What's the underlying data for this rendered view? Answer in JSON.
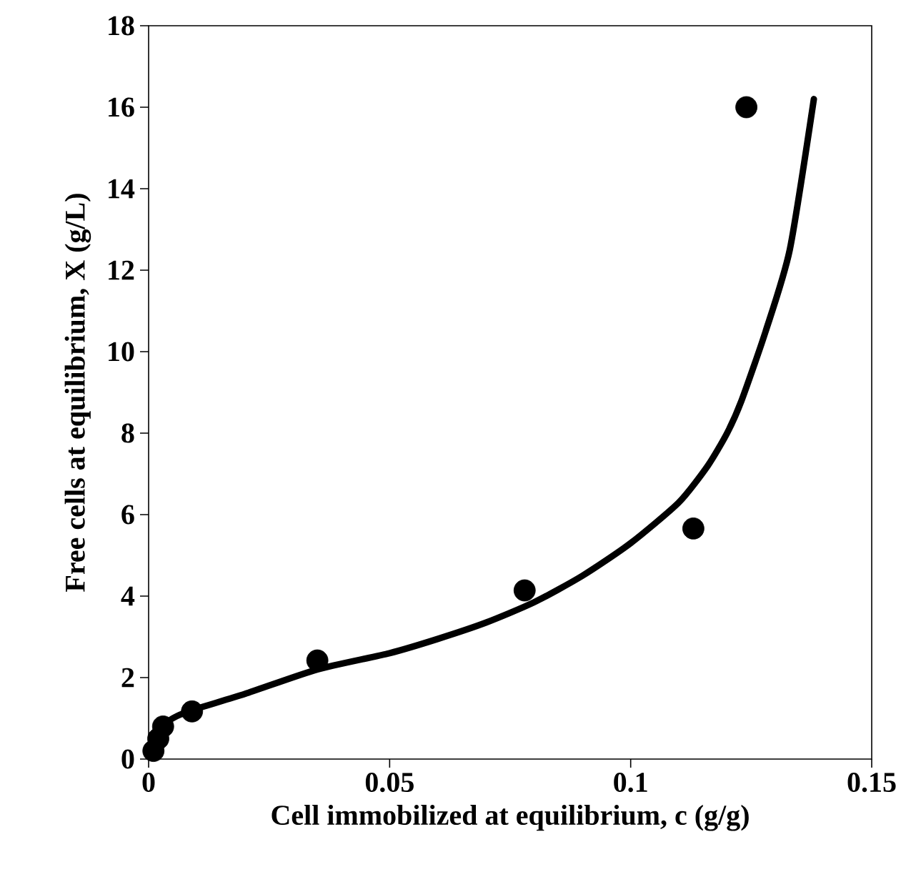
{
  "chart_data": {
    "type": "scatter",
    "xlabel": "Cell immobilized  at equilibrium, c (g/g)",
    "ylabel": "Free cells at equilibrium, X (g/L)",
    "xlim": [
      0,
      0.15
    ],
    "ylim": [
      0,
      18
    ],
    "xticks": [
      0,
      0.05,
      0.1,
      0.15
    ],
    "yticks": [
      0,
      2,
      4,
      6,
      8,
      10,
      12,
      14,
      16,
      18
    ],
    "grid": false,
    "series": [
      {
        "color": "#000000",
        "marker": "circle",
        "x": [
          0.001,
          0.002,
          0.003,
          0.009,
          0.035,
          0.078,
          0.113,
          0.124
        ],
        "values": [
          0.2,
          0.5,
          0.8,
          1.17,
          2.42,
          4.14,
          5.66,
          16.0
        ]
      },
      {
        "type": "line",
        "color": "#000000",
        "marker": "none",
        "line_style": "solid",
        "x": [
          0.0005,
          0.002,
          0.005,
          0.009,
          0.02,
          0.035,
          0.05,
          0.06,
          0.07,
          0.08,
          0.09,
          0.1,
          0.11,
          0.116,
          0.12,
          0.123,
          0.128,
          0.133,
          0.138
        ],
        "values": [
          0.3,
          0.7,
          1.0,
          1.2,
          1.6,
          2.2,
          2.6,
          2.95,
          3.35,
          3.85,
          4.5,
          5.3,
          6.3,
          7.2,
          8.0,
          8.8,
          10.5,
          12.5,
          16.2
        ]
      }
    ]
  }
}
